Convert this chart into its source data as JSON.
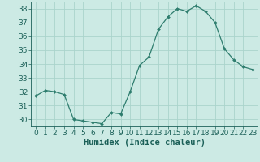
{
  "x": [
    0,
    1,
    2,
    3,
    4,
    5,
    6,
    7,
    8,
    9,
    10,
    11,
    12,
    13,
    14,
    15,
    16,
    17,
    18,
    19,
    20,
    21,
    22,
    23
  ],
  "y": [
    31.7,
    32.1,
    32.0,
    31.8,
    30.0,
    29.9,
    29.8,
    29.7,
    30.5,
    30.4,
    32.0,
    33.9,
    34.5,
    36.5,
    37.4,
    38.0,
    37.8,
    38.2,
    37.8,
    37.0,
    35.1,
    34.3,
    33.8,
    33.6
  ],
  "line_color": "#2e7d6e",
  "marker_color": "#2e7d6e",
  "bg_color": "#cceae4",
  "grid_color": "#aad4cc",
  "xlabel": "Humidex (Indice chaleur)",
  "ylim": [
    29.5,
    38.5
  ],
  "xlim": [
    -0.5,
    23.5
  ],
  "yticks": [
    30,
    31,
    32,
    33,
    34,
    35,
    36,
    37,
    38
  ],
  "xticks": [
    0,
    1,
    2,
    3,
    4,
    5,
    6,
    7,
    8,
    9,
    10,
    11,
    12,
    13,
    14,
    15,
    16,
    17,
    18,
    19,
    20,
    21,
    22,
    23
  ],
  "tick_color": "#1a5f57",
  "label_color": "#1a5f57",
  "font_size": 6.5
}
